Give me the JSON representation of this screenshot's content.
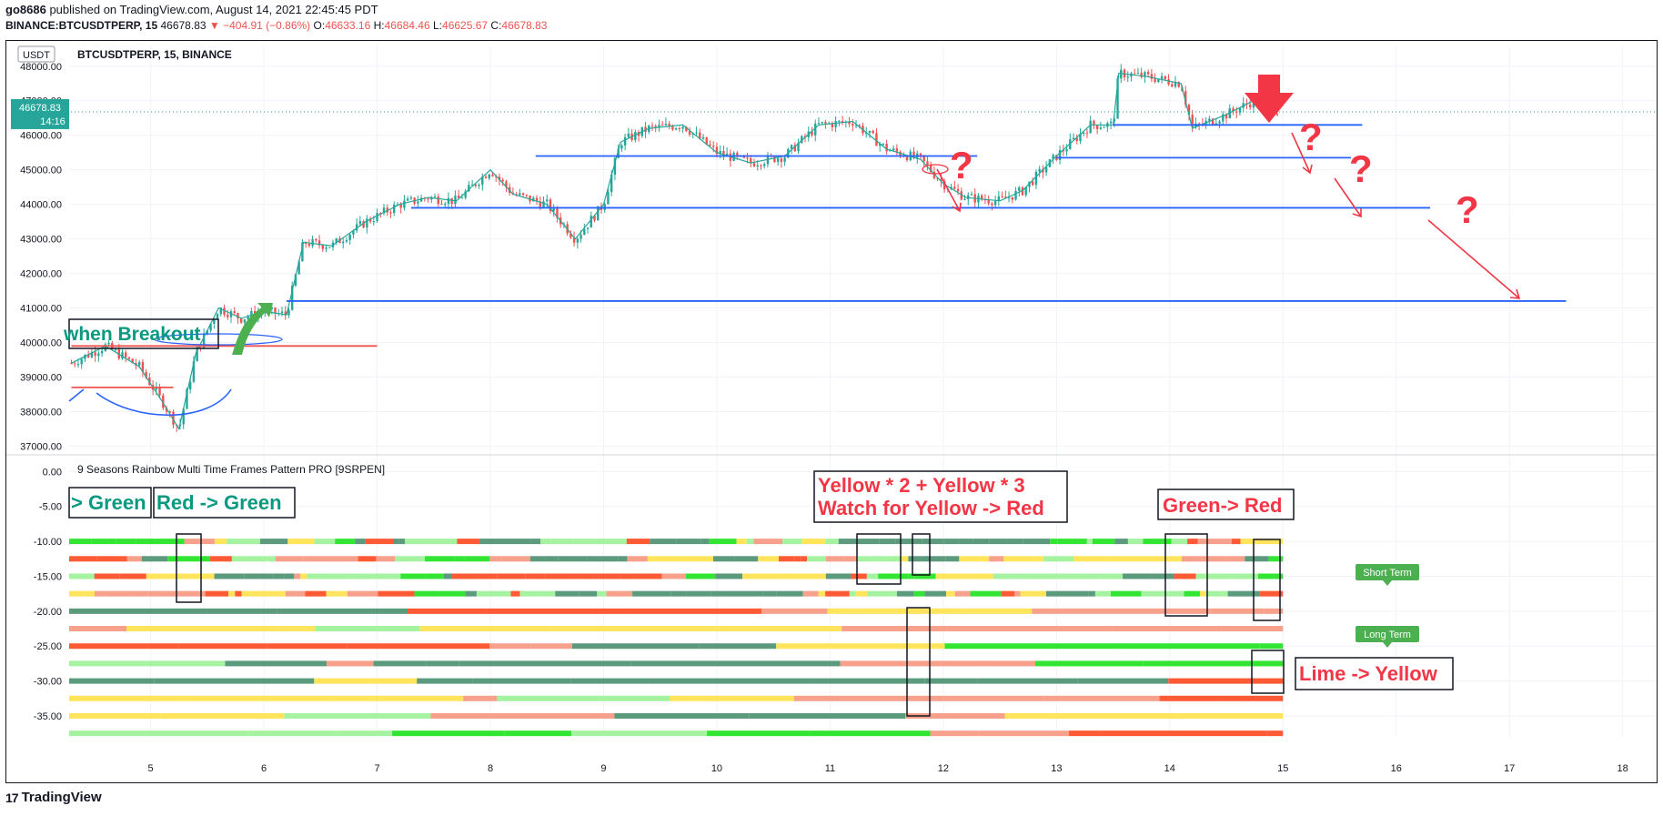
{
  "header": {
    "author": "go8686",
    "published": "published on TradingView.com, August 14, 2021 22:45:45 PDT",
    "symbol_line": "BINANCE:BTCUSDTPERP, 15",
    "last": "46678.83",
    "change": "▼ −404.91 (−0.86%)",
    "o_label": "O:",
    "o_val": "46633.16",
    "h_label": "H:",
    "h_val": "46684.46",
    "l_label": "L:",
    "l_val": "46625.67",
    "c_label": "C:",
    "c_val": "46678.83"
  },
  "main_pane": {
    "currency": "USDT",
    "title": "BTCUSDTPERP, 15, BINANCE",
    "price_tag": "46678.83",
    "countdown": "14:16",
    "price_axis": [
      "48000.00",
      "47000.00",
      "46000.00",
      "45000.00",
      "44000.00",
      "43000.00",
      "42000.00",
      "41000.00",
      "40000.00",
      "39000.00",
      "38000.00",
      "37000.00"
    ]
  },
  "indicator_pane": {
    "title": "9 Seasons Rainbow Multi Time Frames Pattern PRO [9SRPEN]",
    "value_axis": [
      "0.00",
      "-5.00",
      "-10.00",
      "-15.00",
      "-20.00",
      "-25.00",
      "-30.00",
      "-35.00"
    ],
    "short_term_label": "Short Term",
    "long_term_label": "Long Term"
  },
  "time_axis": [
    "5",
    "6",
    "7",
    "8",
    "9",
    "10",
    "11",
    "12",
    "13",
    "14",
    "15",
    "16",
    "17",
    "18"
  ],
  "annotations": {
    "breakout": "when Breakout",
    "green_left": "> Green",
    "red_green": "Red -> Green",
    "yellow_line1": "Yellow * 2 + Yellow * 3",
    "yellow_line2": "Watch for Yellow -> Red",
    "green_red": "Green-> Red",
    "lime_yellow": "Lime -> Yellow",
    "question": "?"
  },
  "footer": {
    "brand": "TradingView",
    "logo_glyph": "17"
  },
  "colors": {
    "up": "#26a69a",
    "down": "#ef5350",
    "line": "#2962ff",
    "red": "#f23645",
    "teal_text": "#089981",
    "dark_green": "#5b9a7d",
    "light_green": "#a5f3a0",
    "lime": "#33e533",
    "yellow": "#ffe45c",
    "orange_red": "#ff5a36",
    "salmon": "#f7a08c",
    "tag_green": "#4caf50"
  },
  "chart_data": {
    "type": "line",
    "title": "BTCUSDTPERP, 15, BINANCE",
    "x": [
      4.3,
      4.6,
      4.9,
      5.1,
      5.25,
      5.4,
      5.6,
      5.8,
      6.0,
      6.2,
      6.35,
      6.6,
      6.9,
      7.2,
      7.45,
      7.7,
      8.0,
      8.2,
      8.5,
      8.75,
      9.0,
      9.15,
      9.4,
      9.7,
      10.0,
      10.3,
      10.6,
      10.9,
      11.2,
      11.5,
      11.8,
      12.0,
      12.2,
      12.5,
      12.7,
      13.0,
      13.3,
      13.5,
      13.55,
      13.8,
      14.1,
      14.2,
      14.5,
      14.8,
      14.95
    ],
    "y": [
      39400,
      39900,
      39300,
      38300,
      37500,
      39700,
      41000,
      40700,
      40900,
      40800,
      42900,
      42800,
      43500,
      44000,
      44200,
      44100,
      45000,
      44300,
      44000,
      43000,
      44000,
      45800,
      46200,
      46300,
      45500,
      45200,
      45400,
      46300,
      46400,
      45600,
      45300,
      44600,
      44200,
      44100,
      44400,
      45400,
      46300,
      46300,
      47800,
      47700,
      47500,
      46200,
      46600,
      47100,
      46678.83
    ],
    "ylim": [
      36800,
      48600
    ],
    "xlim": [
      4.28,
      18.3
    ],
    "horizontal_levels": [
      {
        "y": 45400,
        "x": [
          8.4,
          12.3
        ],
        "color": "#2962ff"
      },
      {
        "y": 43900,
        "x": [
          7.3,
          16.3
        ],
        "color": "#2962ff"
      },
      {
        "y": 46300,
        "x": [
          13.5,
          15.7
        ],
        "color": "#2962ff"
      },
      {
        "y": 45350,
        "x": [
          13.0,
          15.6
        ],
        "color": "#2962ff"
      },
      {
        "y": 41200,
        "x": [
          6.2,
          17.5
        ],
        "color": "#2962ff"
      },
      {
        "y": 39900,
        "x": [
          4.3,
          7.0
        ],
        "color": "#ef5350"
      },
      {
        "y": 38700,
        "x": [
          4.3,
          5.2
        ],
        "color": "#ef5350"
      }
    ],
    "indicator": {
      "title": "9 Seasons Rainbow Multi Time Frames Pattern PRO [9SRPEN]",
      "ylim": [
        -38,
        2
      ],
      "rows": [
        -10,
        -12.5,
        -15,
        -17.5,
        -20,
        -22.5,
        -25,
        -27.5,
        -30,
        -32.5,
        -35,
        -37.5
      ],
      "palette": [
        "#5b9a7d",
        "#a5f3a0",
        "#ff5a36",
        "#f7a08c",
        "#ffe45c",
        "#33e533"
      ]
    }
  }
}
